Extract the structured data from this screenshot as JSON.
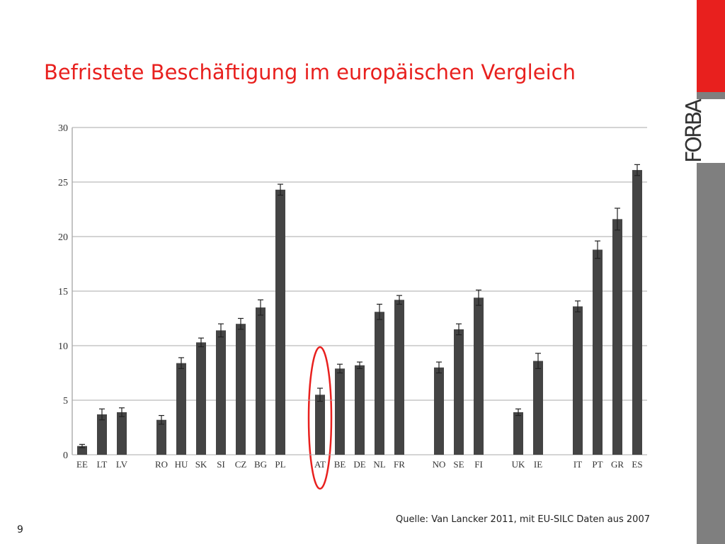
{
  "chart_data": {
    "type": "bar",
    "title": "Befristete Beschäftigung im europäischen Vergleich",
    "source": "Quelle: Van Lancker 2011, mit EU-SILC Daten aus 2007",
    "page_number": "9",
    "logo": "FORBA",
    "categories": [
      "EE",
      "LT",
      "LV",
      null,
      "RO",
      "HU",
      "SK",
      "SI",
      "CZ",
      "BG",
      "PL",
      null,
      "AT",
      "BE",
      "DE",
      "NL",
      "FR",
      null,
      "NO",
      "SE",
      "FI",
      null,
      "UK",
      "IE",
      null,
      "IT",
      "PT",
      "GR",
      "ES"
    ],
    "values": [
      0.8,
      3.7,
      3.9,
      null,
      3.2,
      8.4,
      10.3,
      11.4,
      12.0,
      13.5,
      24.3,
      null,
      5.5,
      7.9,
      8.2,
      13.1,
      14.2,
      null,
      8.0,
      11.5,
      14.4,
      null,
      3.9,
      8.6,
      null,
      13.6,
      18.8,
      21.6,
      26.1
    ],
    "errors": [
      0.15,
      0.5,
      0.4,
      null,
      0.4,
      0.5,
      0.4,
      0.6,
      0.5,
      0.7,
      0.5,
      null,
      0.6,
      0.4,
      0.3,
      0.7,
      0.4,
      null,
      0.5,
      0.5,
      0.7,
      null,
      0.3,
      0.7,
      null,
      0.5,
      0.8,
      1.0,
      0.5
    ],
    "color": "#444444",
    "ylim": [
      0,
      30
    ],
    "yticks": [
      0,
      5,
      10,
      15,
      20,
      25,
      30
    ],
    "grid": true
  }
}
